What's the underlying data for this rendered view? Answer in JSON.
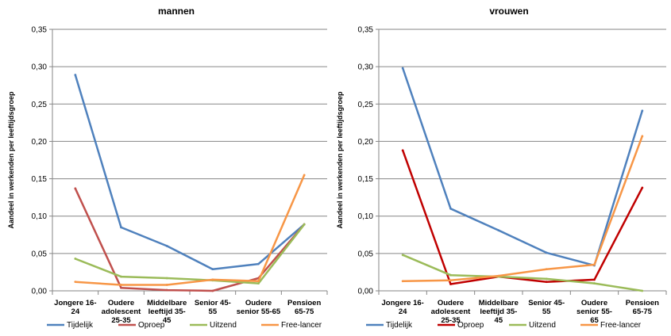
{
  "chart_data": [
    {
      "type": "line",
      "title": "mannen",
      "xlabel": "",
      "ylabel": "Aandeel in werkenden per leeftijdsgroep",
      "ylim": [
        0,
        0.35
      ],
      "yticks": [
        "0,00",
        "0,05",
        "0,10",
        "0,15",
        "0,20",
        "0,25",
        "0,30",
        "0,35"
      ],
      "categories": [
        [
          "Jongere 16-",
          "24"
        ],
        [
          "Oudere",
          "adolescent",
          "25-35"
        ],
        [
          "Middelbare",
          "leeftijd 35-",
          "45"
        ],
        [
          "Senior 45-",
          "55"
        ],
        [
          "Oudere",
          "senior 55-65"
        ],
        [
          "Pensioen",
          "65-75"
        ]
      ],
      "grid": true,
      "legend_position": "bottom",
      "series": [
        {
          "name": "Tijdelijk",
          "color": "#4f81bd",
          "values": [
            0.289,
            0.085,
            0.06,
            0.029,
            0.036,
            0.089
          ]
        },
        {
          "name": "Oproep",
          "color": "#c0504d",
          "values": [
            0.137,
            0.004,
            0.001,
            0.0,
            0.017,
            0.089
          ]
        },
        {
          "name": "Uitzend",
          "color": "#9bbb59",
          "values": [
            0.043,
            0.019,
            0.017,
            0.014,
            0.01,
            0.089
          ]
        },
        {
          "name": "Free-lancer",
          "color": "#f79646",
          "values": [
            0.012,
            0.008,
            0.008,
            0.015,
            0.013,
            0.155
          ]
        }
      ]
    },
    {
      "type": "line",
      "title": "vrouwen",
      "xlabel": "",
      "ylabel": "Aandeel in werkenden per leeftijdsgroep",
      "ylim": [
        0,
        0.35
      ],
      "yticks": [
        "0,00",
        "0,05",
        "0,10",
        "0,15",
        "0,20",
        "0,25",
        "0,30",
        "0,35"
      ],
      "categories": [
        [
          "Jongere 16-",
          "24"
        ],
        [
          "Oudere",
          "adolescent",
          "25-35"
        ],
        [
          "Middelbare",
          "leeftijd 35-",
          "45"
        ],
        [
          "Senior 45-",
          "55"
        ],
        [
          "Oudere",
          "senior 55-",
          "65"
        ],
        [
          "Pensioen",
          "65-75"
        ]
      ],
      "grid": true,
      "legend_position": "bottom",
      "series": [
        {
          "name": "Tijdelijk",
          "color": "#4f81bd",
          "values": [
            0.298,
            0.11,
            0.081,
            0.051,
            0.034,
            0.241
          ]
        },
        {
          "name": "Oproep",
          "color": "#c00000",
          "values": [
            0.188,
            0.009,
            0.019,
            0.012,
            0.015,
            0.138
          ]
        },
        {
          "name": "Uitzend",
          "color": "#9bbb59",
          "values": [
            0.048,
            0.021,
            0.019,
            0.016,
            0.01,
            0.0
          ]
        },
        {
          "name": "Free-lancer",
          "color": "#f79646",
          "values": [
            0.013,
            0.014,
            0.02,
            0.029,
            0.035,
            0.207
          ]
        }
      ]
    }
  ]
}
